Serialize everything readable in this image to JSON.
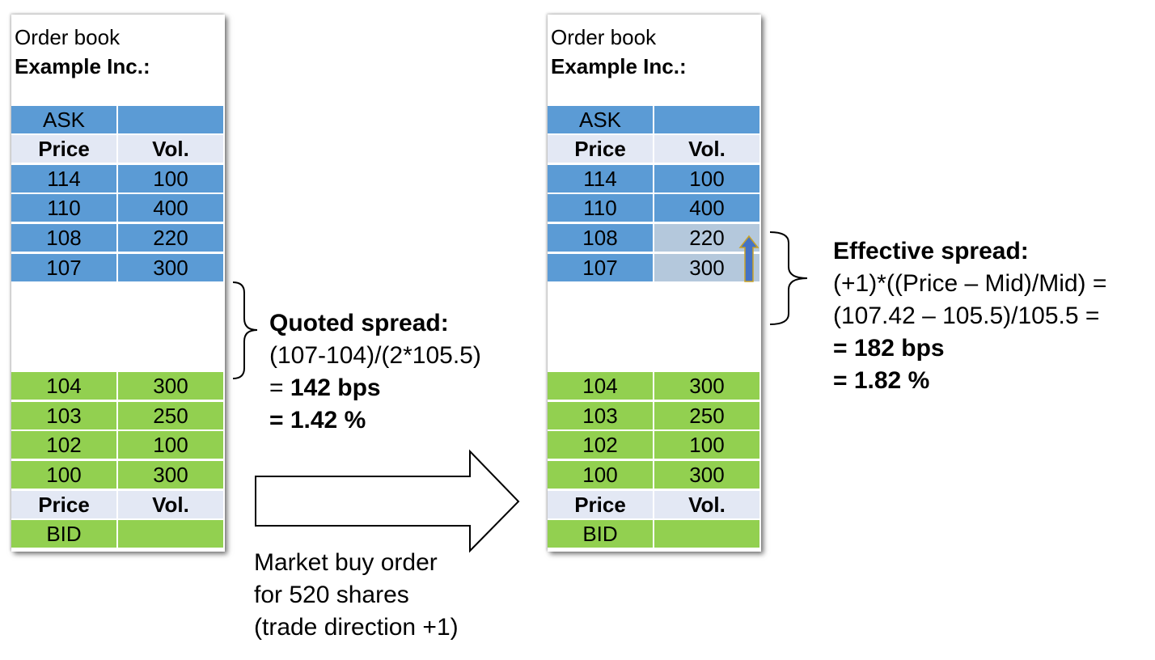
{
  "left_book": {
    "title_line1": "Order book",
    "title_line2": "Example Inc.:",
    "ask_label": "ASK",
    "bid_label": "BID",
    "price_header": "Price",
    "vol_header": "Vol.",
    "asks": [
      {
        "price": "114",
        "vol": "100"
      },
      {
        "price": "110",
        "vol": "400"
      },
      {
        "price": "108",
        "vol": "220"
      },
      {
        "price": "107",
        "vol": "300"
      }
    ],
    "bids": [
      {
        "price": "104",
        "vol": "300"
      },
      {
        "price": "103",
        "vol": "250"
      },
      {
        "price": "102",
        "vol": "100"
      },
      {
        "price": "100",
        "vol": "300"
      }
    ]
  },
  "right_book": {
    "title_line1": "Order book",
    "title_line2": "Example Inc.:",
    "ask_label": "ASK",
    "bid_label": "BID",
    "price_header": "Price",
    "vol_header": "Vol.",
    "asks": [
      {
        "price": "114",
        "vol": "100"
      },
      {
        "price": "110",
        "vol": "400"
      },
      {
        "price": "108",
        "vol": "220"
      },
      {
        "price": "107",
        "vol": "300"
      }
    ],
    "bids": [
      {
        "price": "104",
        "vol": "300"
      },
      {
        "price": "103",
        "vol": "250"
      },
      {
        "price": "102",
        "vol": "100"
      },
      {
        "price": "100",
        "vol": "300"
      }
    ]
  },
  "quoted_spread": {
    "heading": "Quoted spread:",
    "formula": "(107-104)/(2*105.5)",
    "eq_prefix": "= ",
    "bps": "142 bps",
    "percent": "= 1.42 %"
  },
  "effective_spread": {
    "heading": "Effective spread:",
    "formula1": "(+1)*((Price – Mid)/Mid) =",
    "formula2": "(107.42 – 105.5)/105.5 =",
    "eq_prefix": "= ",
    "bps": "182 bps",
    "percent": "= 1.82 %"
  },
  "order": {
    "line1": "Market buy order",
    "line2": "for 520 shares",
    "line3": "(trade direction +1)"
  },
  "colors": {
    "ask": "#5b9bd5",
    "bid": "#92d050",
    "header": "#e3e8f4",
    "consumed": "#b4c8dc",
    "up_arrow": "#4472c4",
    "up_arrow_outline": "#c9a227"
  },
  "icons": {
    "big_arrow": "right-arrow-outline",
    "small_arrow": "up-arrow"
  }
}
